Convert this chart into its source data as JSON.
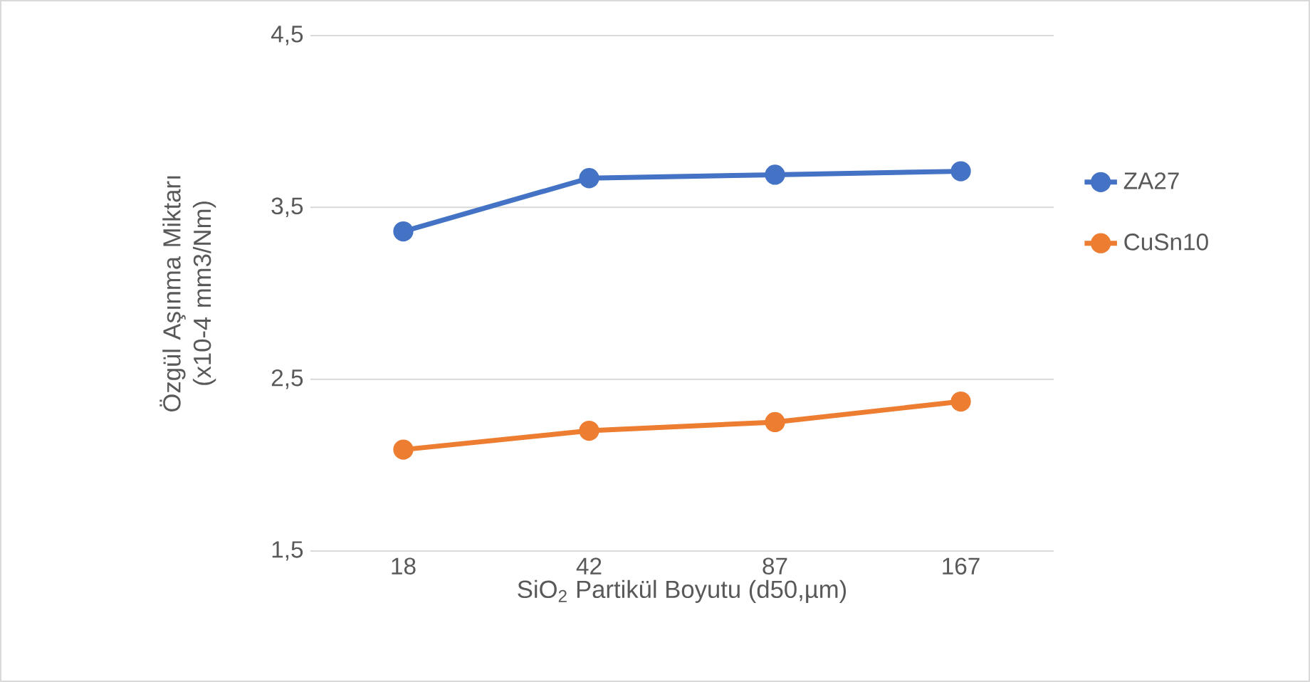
{
  "chart_data": {
    "type": "line",
    "xlabel": "SiO$_{2}$ Partikül Boyutu (d50,µm)",
    "ylabel": "Özgül Aşınma Miktarı  (x10-4 mm3/Nm)",
    "categories": [
      "18",
      "42",
      "87",
      "167"
    ],
    "series": [
      {
        "name": "ZA27",
        "color": "#4472c4",
        "values": [
          3.36,
          3.67,
          3.69,
          3.71
        ]
      },
      {
        "name": "CuSn10",
        "color": "#ed7d31",
        "values": [
          2.09,
          2.2,
          2.25,
          2.37
        ]
      }
    ],
    "ylim": [
      1.5,
      4.5
    ],
    "yticks": [
      {
        "value": 1.5,
        "label": "1,5"
      },
      {
        "value": 2.5,
        "label": "2,5"
      },
      {
        "value": 3.5,
        "label": "3,5"
      },
      {
        "value": 4.5,
        "label": "4,5"
      }
    ],
    "grid": "y",
    "legend": "right",
    "marker": "circle",
    "line_style": "solid"
  }
}
